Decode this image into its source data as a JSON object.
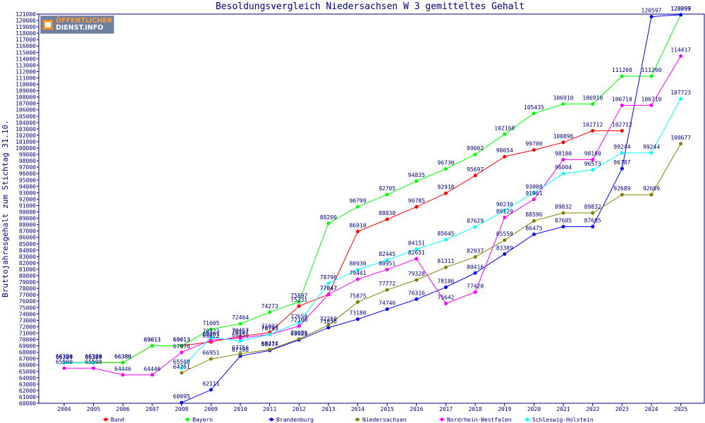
{
  "chart_data": {
    "type": "line",
    "title": "Besoldungsvergleich Niedersachsen W 3 gemitteltes Gehalt",
    "xlabel": "",
    "ylabel": "Bruttojahresgehalt zum Stichtag 31.10.",
    "x": [
      "2004",
      "2005",
      "2006",
      "2007",
      "2008",
      "2009",
      "2010",
      "2011",
      "2012",
      "2013",
      "2014",
      "2015",
      "2016",
      "2017",
      "2018",
      "2019",
      "2020",
      "2021",
      "2022",
      "2023",
      "2024",
      "2025"
    ],
    "ylim": [
      60000,
      121000
    ],
    "ytick_step": 1000,
    "grid": false,
    "legend_position": "bottom",
    "series": [
      {
        "name": "Bund",
        "color": "#ff0000",
        "values": [
          66380,
          66380,
          66380,
          69013,
          69013,
          69622,
          70457,
          71093,
          75231,
          77047,
          86918,
          88830,
          90785,
          92918,
          95697,
          98654,
          99700,
          100896,
          102712,
          102712,
          null,
          null
        ]
      },
      {
        "name": "Bayern",
        "color": "#00ff00",
        "values": [
          66380,
          66380,
          66380,
          69013,
          69013,
          71605,
          72464,
          74273,
          75897,
          88200,
          90799,
          92705,
          94835,
          96730,
          99002,
          102168,
          105435,
          106910,
          106910,
          111260,
          111260,
          120899
        ]
      },
      {
        "name": "Brandenburg",
        "color": "#0000ff",
        "values": [
          null,
          null,
          null,
          null,
          60095,
          62111,
          67398,
          68277,
          69929,
          71856,
          73180,
          74746,
          76316,
          78186,
          80416,
          83389,
          86475,
          87685,
          87685,
          96787,
          120597,
          120897
        ]
      },
      {
        "name": "Niedersachsen",
        "color": "#808000",
        "values": [
          null,
          null,
          null,
          null,
          64761,
          66951,
          67756,
          68414,
          70081,
          72250,
          75875,
          77772,
          79328,
          81311,
          82937,
          85558,
          88596,
          89832,
          89832,
          92689,
          92689,
          100677
        ]
      },
      {
        "name": "Nordrhein-Westfalen",
        "color": "#ff00ff",
        "values": [
          65500,
          65500,
          64446,
          64446,
          67976,
          69901,
          70207,
          70793,
          72100,
          77047,
          79441,
          80951,
          82651,
          75642,
          77420,
          89129,
          91961,
          98180,
          98180,
          106710,
          106710,
          114417
        ]
      },
      {
        "name": "Schleswig-Holstein",
        "color": "#00ffff",
        "values": [
          66324,
          66324,
          null,
          null,
          65508,
          70323,
          69750,
          70793,
          72654,
          78796,
          80930,
          82445,
          84151,
          85645,
          87629,
          90230,
          93008,
          96004,
          96573,
          99244,
          99244,
          107723
        ]
      }
    ]
  },
  "logo": {
    "line1": "ÖFFENTLICHER",
    "line2": "DIENST.INFO"
  }
}
